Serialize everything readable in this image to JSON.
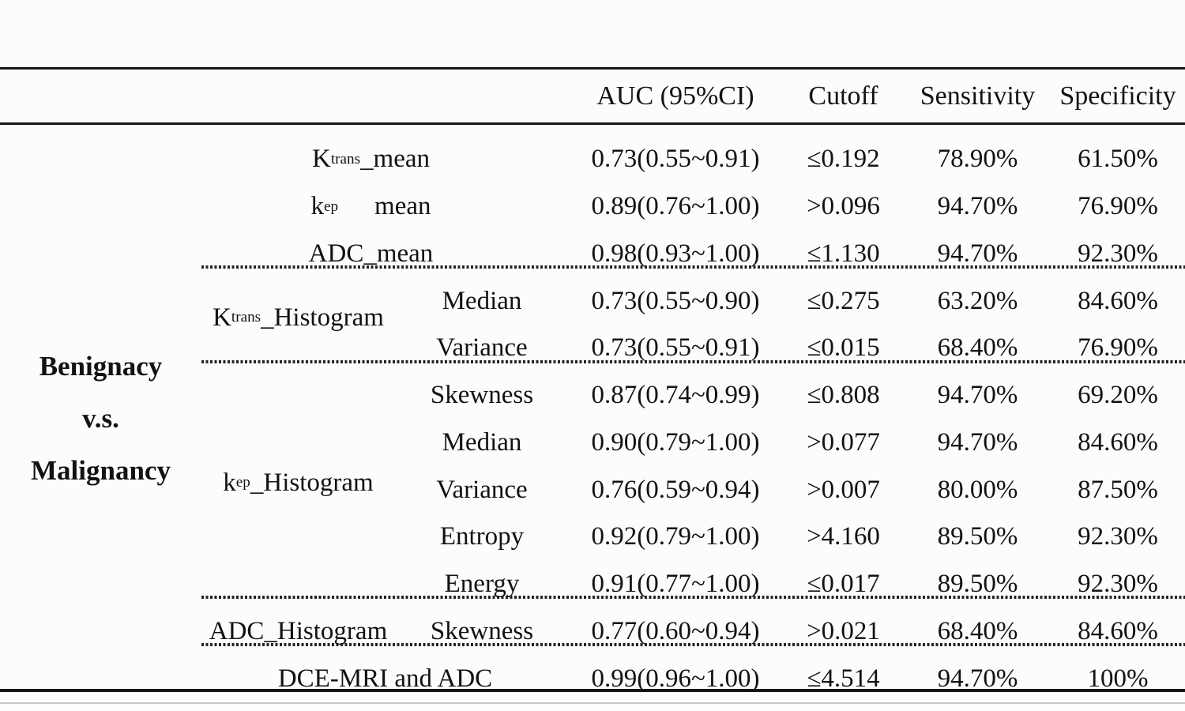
{
  "table": {
    "comparison_label": [
      "Benignacy",
      "v.s.",
      "Malignancy"
    ],
    "headers": {
      "auc": "AUC (95%CI)",
      "cutoff": "Cutoff",
      "sensitivity": "Sensitivity",
      "specificity": "Specificity"
    },
    "groups": {
      "ktrans_histogram": {
        "base": "K",
        "sup": "trans",
        "rest": "_Histogram"
      },
      "kep_histogram": {
        "base": "k",
        "sub": "ep",
        "rest": "_Histogram"
      },
      "adc_histogram": {
        "text": "ADC_Histogram"
      }
    },
    "rows": [
      {
        "label": {
          "base": "K",
          "sup": "trans",
          "rest": "_mean"
        },
        "auc": "0.73(0.55~0.91)",
        "cutoff": "≤0.192",
        "sensitivity": "78.90%",
        "specificity": "61.50%"
      },
      {
        "label": {
          "base": "k",
          "sub": "ep",
          "rest": "mean"
        },
        "auc": "0.89(0.76~1.00)",
        "cutoff": ">0.096",
        "sensitivity": "94.70%",
        "specificity": "76.90%"
      },
      {
        "label": {
          "text": "ADC_mean"
        },
        "auc": "0.98(0.93~1.00)",
        "cutoff": "≤1.130",
        "sensitivity": "94.70%",
        "specificity": "92.30%"
      },
      {
        "metric": "Median",
        "auc": "0.73(0.55~0.90)",
        "cutoff": "≤0.275",
        "sensitivity": "63.20%",
        "specificity": "84.60%"
      },
      {
        "metric": "Variance",
        "auc": "0.73(0.55~0.91)",
        "cutoff": "≤0.015",
        "sensitivity": "68.40%",
        "specificity": "76.90%"
      },
      {
        "metric": "Skewness",
        "auc": "0.87(0.74~0.99)",
        "cutoff": "≤0.808",
        "sensitivity": "94.70%",
        "specificity": "69.20%"
      },
      {
        "metric": "Median",
        "auc": "0.90(0.79~1.00)",
        "cutoff": ">0.077",
        "sensitivity": "94.70%",
        "specificity": "84.60%"
      },
      {
        "metric": "Variance",
        "auc": "0.76(0.59~0.94)",
        "cutoff": ">0.007",
        "sensitivity": "80.00%",
        "specificity": "87.50%"
      },
      {
        "metric": "Entropy",
        "auc": "0.92(0.79~1.00)",
        "cutoff": ">4.160",
        "sensitivity": "89.50%",
        "specificity": "92.30%"
      },
      {
        "metric": "Energy",
        "auc": "0.91(0.77~1.00)",
        "cutoff": "≤0.017",
        "sensitivity": "89.50%",
        "specificity": "92.30%"
      },
      {
        "metric": "Skewness",
        "auc": "0.77(0.60~0.94)",
        "cutoff": ">0.021",
        "sensitivity": "68.40%",
        "specificity": "84.60%"
      },
      {
        "label": {
          "text": "DCE-MRI and ADC"
        },
        "auc": "0.99(0.96~1.00)",
        "cutoff": "≤4.514",
        "sensitivity": "94.70%",
        "specificity": "100%"
      }
    ]
  }
}
